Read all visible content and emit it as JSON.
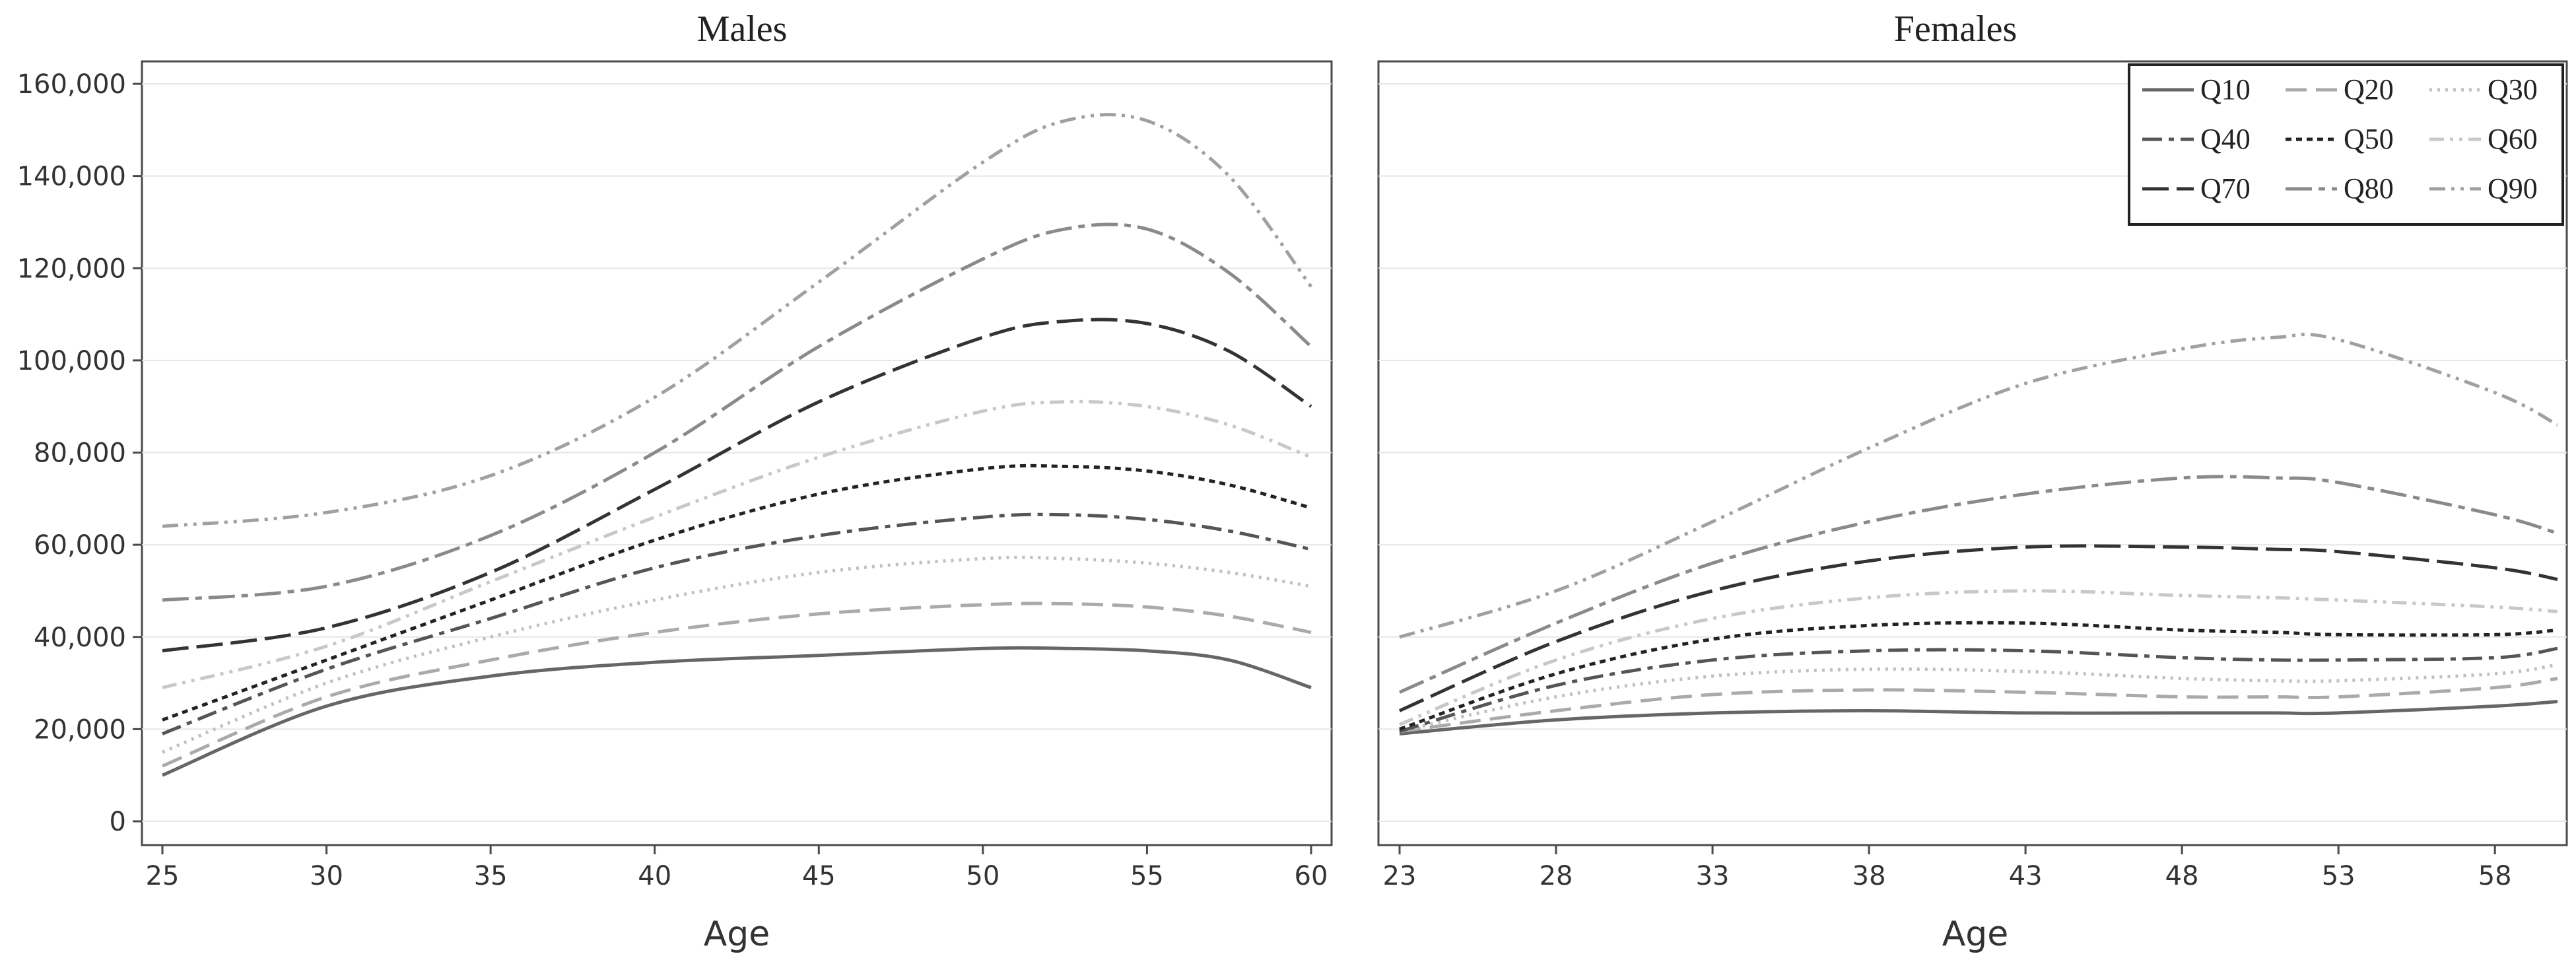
{
  "chart_data": [
    {
      "type": "line",
      "title": "Males",
      "xlabel": "Age",
      "ylabel": "",
      "xlim": [
        25,
        60
      ],
      "ylim": [
        0,
        160000
      ],
      "xticks": [
        25,
        30,
        35,
        40,
        45,
        50,
        55,
        60
      ],
      "yticks": [
        0,
        20000,
        40000,
        60000,
        80000,
        100000,
        120000,
        140000,
        160000
      ],
      "ytick_labels": [
        "0",
        "20,000",
        "40,000",
        "60,000",
        "80,000",
        "100,000",
        "120,000",
        "140,000",
        "160,000"
      ],
      "grid": "horizontal",
      "x": [
        25,
        30,
        35,
        40,
        45,
        50,
        52.5,
        55,
        57.5,
        60
      ],
      "series": [
        {
          "name": "Q10",
          "values": [
            10000,
            25000,
            31500,
            34500,
            36000,
            37500,
            37500,
            37000,
            35000,
            29000
          ]
        },
        {
          "name": "Q20",
          "values": [
            12000,
            27000,
            35000,
            41000,
            45000,
            47000,
            47200,
            46500,
            44500,
            41000
          ]
        },
        {
          "name": "Q30",
          "values": [
            15000,
            30000,
            40000,
            48000,
            54000,
            57000,
            57000,
            56000,
            54000,
            51000
          ]
        },
        {
          "name": "Q40",
          "values": [
            19000,
            33000,
            44000,
            55000,
            62000,
            66000,
            66500,
            65500,
            63000,
            59000
          ]
        },
        {
          "name": "Q50",
          "values": [
            22000,
            35000,
            48000,
            61000,
            71000,
            76500,
            77000,
            76000,
            73000,
            68000
          ]
        },
        {
          "name": "Q60",
          "values": [
            29000,
            38000,
            52000,
            66000,
            79000,
            89000,
            91000,
            90000,
            86000,
            79000
          ]
        },
        {
          "name": "Q70",
          "values": [
            37000,
            42000,
            54000,
            72000,
            91000,
            105000,
            108500,
            108000,
            102000,
            90000
          ]
        },
        {
          "name": "Q80",
          "values": [
            48000,
            51000,
            62000,
            80000,
            103000,
            122000,
            128500,
            128500,
            119000,
            103000
          ]
        },
        {
          "name": "Q90",
          "values": [
            64000,
            67000,
            75000,
            92000,
            117000,
            143000,
            152000,
            152000,
            140000,
            116000
          ]
        }
      ]
    },
    {
      "type": "line",
      "title": "Females",
      "xlabel": "Age",
      "ylabel": "",
      "xlim": [
        23,
        60
      ],
      "ylim": [
        0,
        160000
      ],
      "xticks": [
        23,
        28,
        33,
        38,
        43,
        48,
        53,
        58
      ],
      "grid": "horizontal",
      "x": [
        23,
        28,
        33,
        38,
        43,
        48,
        51,
        53,
        58,
        60
      ],
      "series": [
        {
          "name": "Q10",
          "values": [
            19000,
            22000,
            23500,
            24000,
            23500,
            23500,
            23500,
            23500,
            25000,
            26000
          ]
        },
        {
          "name": "Q20",
          "values": [
            19500,
            24000,
            27500,
            28500,
            28000,
            27000,
            27000,
            27000,
            29000,
            31000
          ]
        },
        {
          "name": "Q30",
          "values": [
            19500,
            27000,
            31500,
            33000,
            32500,
            31000,
            30500,
            30500,
            32000,
            34000
          ]
        },
        {
          "name": "Q40",
          "values": [
            19500,
            29500,
            35000,
            37000,
            37000,
            35500,
            35000,
            35000,
            35500,
            37500
          ]
        },
        {
          "name": "Q50",
          "values": [
            20000,
            32000,
            39500,
            42500,
            43000,
            41500,
            41000,
            40500,
            40500,
            41500
          ]
        },
        {
          "name": "Q60",
          "values": [
            21000,
            35000,
            44000,
            48500,
            50000,
            49000,
            48500,
            48000,
            46500,
            45500
          ]
        },
        {
          "name": "Q70",
          "values": [
            24000,
            39000,
            50000,
            56500,
            59500,
            59500,
            59000,
            58500,
            55000,
            52500
          ]
        },
        {
          "name": "Q80",
          "values": [
            28000,
            43000,
            56000,
            65000,
            71000,
            74500,
            74500,
            73500,
            66500,
            62500
          ]
        },
        {
          "name": "Q90",
          "values": [
            40000,
            50000,
            65000,
            81000,
            95000,
            102500,
            105000,
            104500,
            93000,
            86000
          ]
        }
      ]
    }
  ],
  "legend": {
    "placement": "top-right",
    "columns": 3,
    "items": [
      "Q10",
      "Q20",
      "Q30",
      "Q40",
      "Q50",
      "Q60",
      "Q70",
      "Q80",
      "Q90"
    ]
  },
  "series_styles": {
    "Q10": {
      "color": "#666666",
      "dash": "none"
    },
    "Q20": {
      "color": "#aaaaaa",
      "dash": "32 14"
    },
    "Q30": {
      "color": "#c0c0c0",
      "dash": "4 8"
    },
    "Q40": {
      "color": "#555555",
      "dash": "30 10 8 10"
    },
    "Q50": {
      "color": "#222222",
      "dash": "9 7"
    },
    "Q60": {
      "color": "#c8c8c8",
      "dash": "22 9 5 9 5 9"
    },
    "Q70": {
      "color": "#333333",
      "dash": "40 12"
    },
    "Q80": {
      "color": "#8a8a8a",
      "dash": "40 10 10 10"
    },
    "Q90": {
      "color": "#a0a0a0",
      "dash": "24 9 5 9 5 9"
    }
  }
}
